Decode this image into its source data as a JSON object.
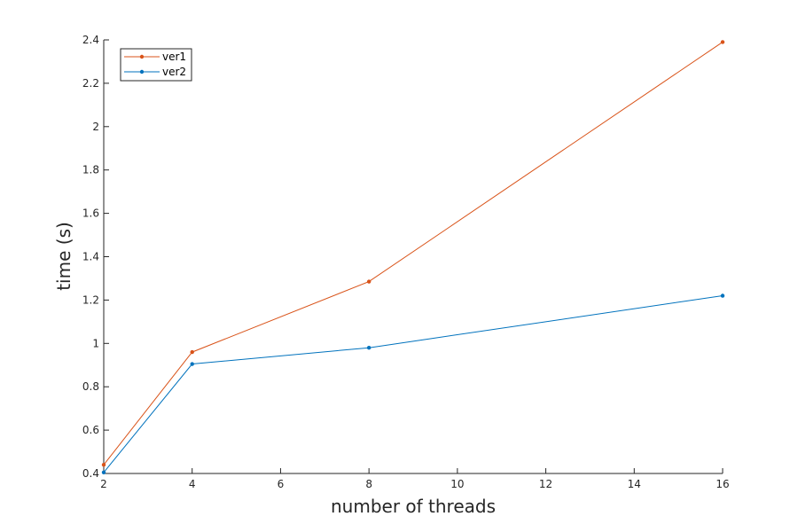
{
  "chart_data": {
    "type": "line",
    "title": "",
    "xlabel": "number of threads",
    "ylabel": "time (s)",
    "xlim": [
      2,
      16
    ],
    "ylim": [
      0.4,
      2.4
    ],
    "xticks": [
      2,
      4,
      6,
      8,
      10,
      12,
      14,
      16
    ],
    "yticks": [
      0.4,
      0.6,
      0.8,
      1,
      1.2,
      1.4,
      1.6,
      1.8,
      2,
      2.2,
      2.4
    ],
    "grid": false,
    "legend_position": "top-left",
    "series": [
      {
        "name": "ver1",
        "color": "#D95319",
        "marker": "dot",
        "x": [
          2,
          4,
          8,
          16
        ],
        "y": [
          0.44,
          0.96,
          1.285,
          2.39
        ]
      },
      {
        "name": "ver2",
        "color": "#0072BD",
        "marker": "dot",
        "x": [
          2,
          4,
          8,
          16
        ],
        "y": [
          0.405,
          0.905,
          0.98,
          1.22
        ]
      }
    ]
  }
}
